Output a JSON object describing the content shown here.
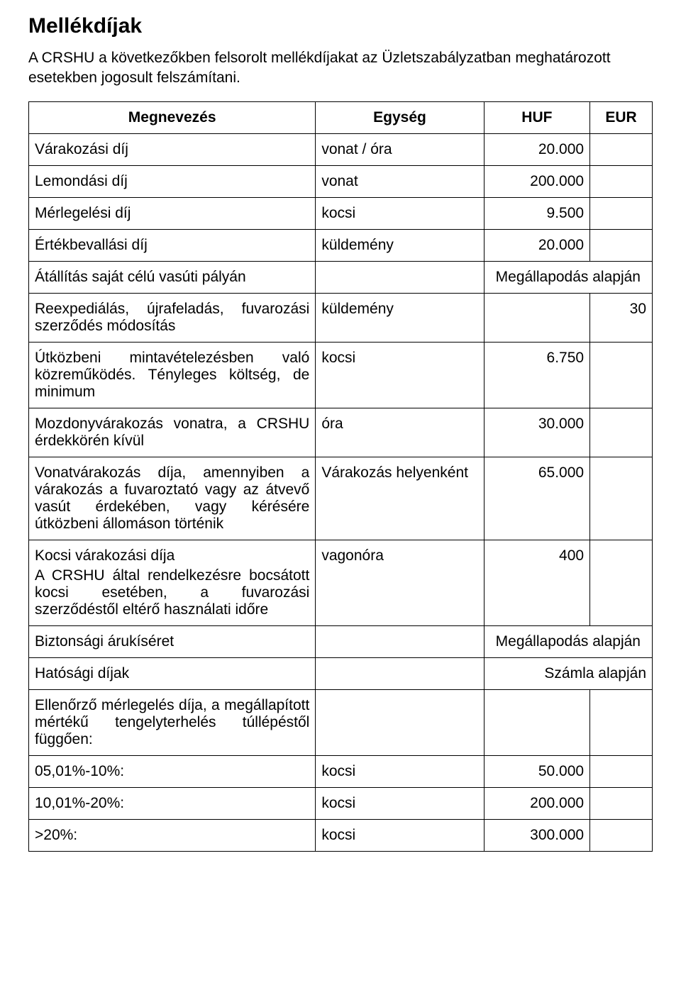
{
  "title": "Mellékdíjak",
  "intro": "A CRSHU a következőkben felsorolt mellékdíjakat az Üzletszabályzatban meghatározott esetekben jogosult felszámítani.",
  "columns": {
    "name": "Megnevezés",
    "unit": "Egység",
    "huf": "HUF",
    "eur": "EUR"
  },
  "rows": {
    "r1": {
      "name": "Várakozási díj",
      "unit": "vonat / óra",
      "huf": "20.000",
      "eur": ""
    },
    "r2": {
      "name": "Lemondási díj",
      "unit": "vonat",
      "huf": "200.000",
      "eur": ""
    },
    "r3": {
      "name": "Mérlegelési díj",
      "unit": "kocsi",
      "huf": "9.500",
      "eur": ""
    },
    "r4": {
      "name": "Értékbevallási díj",
      "unit": "küldemény",
      "huf": "20.000",
      "eur": ""
    },
    "r5": {
      "name": "Átállítás saját célú vasúti pályán",
      "span": "Megállapodás alapján"
    },
    "r6": {
      "name": "Reexpediálás, újrafeladás, fuvarozási szerződés módosítás",
      "unit": "küldemény",
      "huf": "",
      "eur": "30"
    },
    "r7": {
      "name": "Útközbeni mintavételezésben való közreműködés. Tényleges költség, de minimum",
      "unit": "kocsi",
      "huf": "6.750",
      "eur": ""
    },
    "r8": {
      "name": "Mozdonyvárakozás vonatra, a CRSHU érdekkörén kívül",
      "unit": "óra",
      "huf": "30.000",
      "eur": ""
    },
    "r9": {
      "name": "Vonatvárakozás díja, amennyiben a várakozás a fuvaroztató vagy az átvevő vasút érdekében, vagy kérésére útközbeni állomáson történik",
      "unit": "Várakozás helyenként",
      "huf": "65.000",
      "eur": ""
    },
    "r10": {
      "name": "Kocsi várakozási díja",
      "desc": "A CRSHU által rendelkezésre bocsátott kocsi esetében, a fuvarozási szerződéstől eltérő használati időre",
      "unit": "vagonóra",
      "huf": "400",
      "eur": ""
    },
    "r11": {
      "name": "Biztonsági árukíséret",
      "span": "Megállapodás alapján"
    },
    "r12": {
      "name": "Hatósági díjak",
      "span": "Számla alapján"
    },
    "r13": {
      "name": "Ellenőrző mérlegelés díja, a megállapított mértékű tengelyterhelés túllépéstől függően:",
      "unit": "",
      "huf": "",
      "eur": ""
    },
    "r14": {
      "name": "05,01%-10%:",
      "unit": "kocsi",
      "huf": "50.000",
      "eur": ""
    },
    "r15": {
      "name": "10,01%-20%:",
      "unit": "kocsi",
      "huf": "200.000",
      "eur": ""
    },
    "r16": {
      "name": ">20%:",
      "unit": "kocsi",
      "huf": "300.000",
      "eur": ""
    }
  }
}
